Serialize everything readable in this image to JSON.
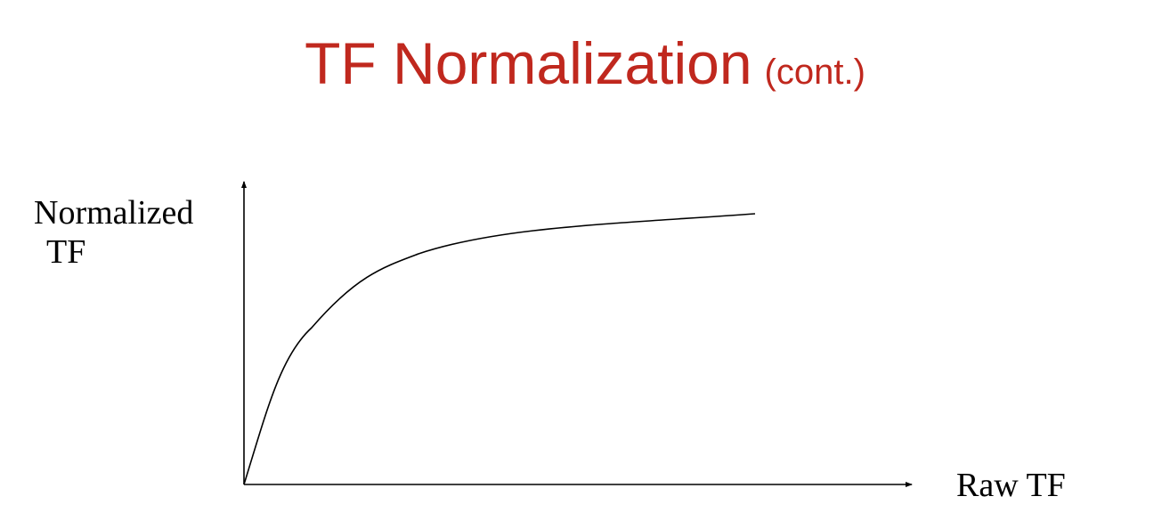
{
  "slide": {
    "title": "TF Normalization",
    "title_suffix": "(cont.)",
    "title_color": "#c0281e"
  },
  "diagram": {
    "y_axis_label_line1": "Normalized",
    "y_axis_label_line2": "TF",
    "x_axis_label": "Raw TF",
    "curve_shape": "concave-increasing-saturating",
    "axis_color": "#000000",
    "curve_color": "#000000"
  }
}
